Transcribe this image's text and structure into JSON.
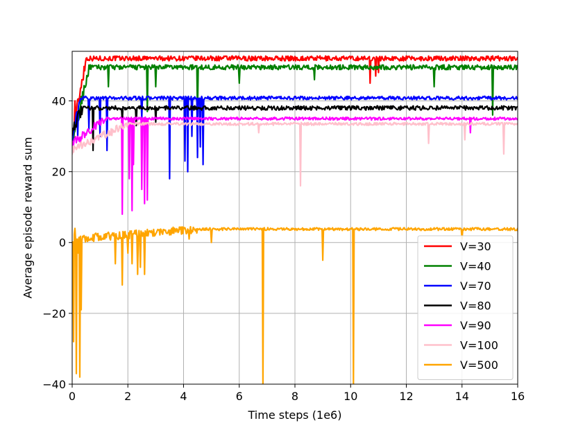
{
  "chart_data": {
    "type": "line",
    "xlabel": "Time steps (1e6)",
    "ylabel": "Average episode reward sum",
    "xlim": [
      0,
      16
    ],
    "ylim": [
      -40,
      54
    ],
    "xticks": [
      0,
      2,
      4,
      6,
      8,
      10,
      12,
      14,
      16
    ],
    "xtick_labels": [
      "0",
      "2",
      "4",
      "6",
      "8",
      "10",
      "12",
      "14",
      "16"
    ],
    "yticks": [
      -40,
      -20,
      0,
      20,
      40
    ],
    "ytick_labels": [
      "−40",
      "−20",
      "0",
      "20",
      "40"
    ],
    "grid": true,
    "legend_position": "lower right",
    "series": [
      {
        "name": "V=30",
        "color": "#ff0000",
        "base": 52,
        "start": 30,
        "rise_end": 0.5,
        "noise": 0.7,
        "dips": [
          [
            0.1,
            40
          ],
          [
            0.35,
            46
          ],
          [
            10.7,
            45
          ],
          [
            10.9,
            47
          ],
          [
            11.0,
            48
          ]
        ]
      },
      {
        "name": "V=40",
        "color": "#008000",
        "base": 49.5,
        "start": 28,
        "rise_end": 0.6,
        "noise": 0.7,
        "dips": [
          [
            0.25,
            35
          ],
          [
            1.3,
            44
          ],
          [
            2.7,
            37
          ],
          [
            3.0,
            44
          ],
          [
            4.5,
            36
          ],
          [
            6.0,
            45
          ],
          [
            8.7,
            46
          ],
          [
            13.0,
            44
          ],
          [
            15.1,
            36
          ]
        ]
      },
      {
        "name": "V=70",
        "color": "#0000ff",
        "base": 40.8,
        "start": 30,
        "rise_end": 0.3,
        "noise": 0.5,
        "dips": [
          [
            0.2,
            30
          ],
          [
            0.6,
            32
          ],
          [
            1.0,
            30
          ],
          [
            1.25,
            26
          ],
          [
            2.5,
            35
          ],
          [
            3.5,
            18
          ],
          [
            4.05,
            23
          ],
          [
            4.15,
            20
          ],
          [
            4.3,
            30
          ],
          [
            4.5,
            24
          ],
          [
            4.6,
            27
          ],
          [
            4.7,
            22
          ]
        ]
      },
      {
        "name": "V=80",
        "color": "#000000",
        "base": 38,
        "start": 32,
        "rise_end": 0.4,
        "noise": 0.6,
        "dips": [
          [
            0.75,
            26
          ],
          [
            1.8,
            34
          ],
          [
            2.3,
            33
          ],
          [
            3.0,
            34
          ]
        ]
      },
      {
        "name": "V=90",
        "color": "#ff00ff",
        "base": 35,
        "start": 28,
        "rise_end": 1.2,
        "noise": 0.4,
        "dips": [
          [
            0.3,
            28
          ],
          [
            1.8,
            8
          ],
          [
            2.05,
            18
          ],
          [
            2.15,
            9
          ],
          [
            2.2,
            22
          ],
          [
            2.5,
            15
          ],
          [
            2.6,
            11
          ],
          [
            2.7,
            12
          ],
          [
            14.3,
            31
          ]
        ]
      },
      {
        "name": "V=100",
        "color": "#ffc0cb",
        "base": 33.5,
        "start": 26,
        "rise_end": 2.0,
        "noise": 0.4,
        "dips": [
          [
            0.5,
            28
          ],
          [
            6.7,
            31
          ],
          [
            8.2,
            16
          ],
          [
            12.8,
            28
          ],
          [
            14.1,
            29
          ],
          [
            15.5,
            25
          ]
        ]
      },
      {
        "name": "V=500",
        "color": "#ffa500",
        "base": 3.8,
        "start": 1,
        "rise_end": 4.5,
        "noise": 0.4,
        "dips": [
          [
            0.05,
            -28
          ],
          [
            0.1,
            4
          ],
          [
            0.15,
            -37
          ],
          [
            0.2,
            -3
          ],
          [
            0.28,
            -38
          ],
          [
            0.32,
            -19
          ],
          [
            1.55,
            -6
          ],
          [
            1.8,
            -12
          ],
          [
            2.0,
            -3
          ],
          [
            2.15,
            -6
          ],
          [
            2.35,
            -9
          ],
          [
            2.45,
            -7
          ],
          [
            2.6,
            -9
          ],
          [
            4.2,
            1
          ],
          [
            5.0,
            0
          ],
          [
            6.85,
            -40
          ],
          [
            9.0,
            -5
          ],
          [
            10.1,
            -40
          ],
          [
            14.0,
            1
          ]
        ]
      }
    ]
  }
}
